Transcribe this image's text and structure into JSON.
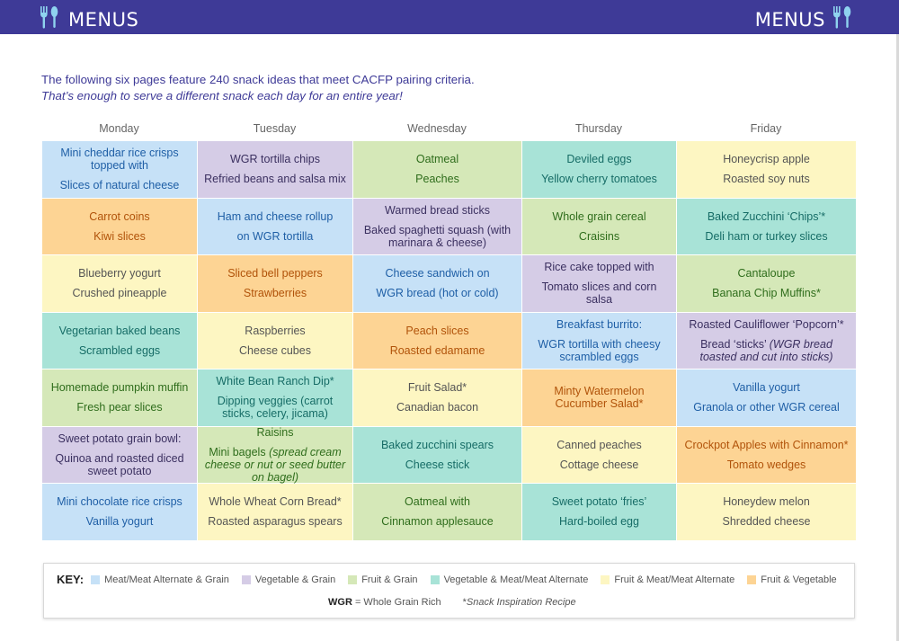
{
  "header": {
    "left_title": "MENUS",
    "right_title": "MENUS",
    "icon": "fork-spoon-icon"
  },
  "intro": {
    "line1": "The following six pages feature 240 snack ideas that meet CACFP pairing criteria.",
    "line2": "That’s enough to serve a different snack each day for an entire year!"
  },
  "days": [
    "Monday",
    "Tuesday",
    "Wednesday",
    "Thursday",
    "Friday"
  ],
  "colors": {
    "mg": "#c6e1f7",
    "vg": "#d5cce6",
    "fg": "#d5e8b8",
    "vm": "#a8e3d7",
    "fm": "#fdf6c2",
    "fv": "#fdd494",
    "header": "#3e3a97"
  },
  "grid": [
    [
      {
        "cat": "mg",
        "a": "Mini cheddar rice crisps topped with",
        "b": "Slices of natural cheese"
      },
      {
        "cat": "vg",
        "a": "WGR tortilla chips",
        "b": "Refried beans and salsa mix"
      },
      {
        "cat": "fg",
        "a": "Oatmeal",
        "b": "Peaches"
      },
      {
        "cat": "vm",
        "a": "Deviled eggs",
        "b": "Yellow cherry tomatoes"
      },
      {
        "cat": "fm",
        "a": "Honeycrisp apple",
        "b": "Roasted soy nuts"
      }
    ],
    [
      {
        "cat": "fv",
        "a": "Carrot coins",
        "b": "Kiwi slices"
      },
      {
        "cat": "mg",
        "a": "Ham and cheese rollup",
        "b": "on WGR tortilla"
      },
      {
        "cat": "vg",
        "a": "Warmed bread sticks",
        "b": "Baked spaghetti squash (with marinara & cheese)"
      },
      {
        "cat": "fg",
        "a": "Whole grain cereal",
        "b": "Craisins"
      },
      {
        "cat": "vm",
        "a": "Baked Zucchini ‘Chips’*",
        "b": "Deli ham or turkey slices"
      }
    ],
    [
      {
        "cat": "fm",
        "a": "Blueberry yogurt",
        "b": "Crushed pineapple"
      },
      {
        "cat": "fv",
        "a": "Sliced bell peppers",
        "b": "Strawberries"
      },
      {
        "cat": "mg",
        "a": "Cheese sandwich on",
        "b": "WGR bread (hot or cold)"
      },
      {
        "cat": "vg",
        "a": "Rice cake topped with",
        "b": "Tomato slices and corn salsa"
      },
      {
        "cat": "fg",
        "a": "Cantaloupe",
        "b": "Banana Chip Muffins*"
      }
    ],
    [
      {
        "cat": "vm",
        "a": "Vegetarian baked beans",
        "b": "Scrambled eggs"
      },
      {
        "cat": "fm",
        "a": "Raspberries",
        "b": "Cheese cubes"
      },
      {
        "cat": "fv",
        "a": "Peach slices",
        "b": "Roasted edamame"
      },
      {
        "cat": "mg",
        "a": "Breakfast burrito:",
        "b": "WGR tortilla with cheesy scrambled eggs"
      },
      {
        "cat": "vg",
        "a": "Roasted Cauliflower ‘Popcorn’*",
        "b": "Bread ‘sticks’",
        "bi": "(WGR bread toasted and cut into sticks)"
      }
    ],
    [
      {
        "cat": "fg",
        "a": "Homemade pumpkin muffin",
        "b": "Fresh pear slices"
      },
      {
        "cat": "vm",
        "a": "White Bean Ranch Dip*",
        "b": "Dipping veggies (carrot sticks, celery, jicama)"
      },
      {
        "cat": "fm",
        "a": "Fruit Salad*",
        "b": "Canadian bacon"
      },
      {
        "cat": "fv",
        "a": "Minty Watermelon Cucumber Salad*",
        "b": ""
      },
      {
        "cat": "mg",
        "a": "Vanilla yogurt",
        "b": "Granola or other WGR cereal"
      }
    ],
    [
      {
        "cat": "vg",
        "a": "Sweet potato grain bowl:",
        "b": "Quinoa and roasted diced sweet potato"
      },
      {
        "cat": "fg",
        "a": "Raisins",
        "b": "Mini bagels",
        "bi": "(spread cream cheese or nut or seed butter on bagel)"
      },
      {
        "cat": "vm",
        "a": "Baked zucchini spears",
        "b": "Cheese stick"
      },
      {
        "cat": "fm",
        "a": "Canned peaches",
        "b": "Cottage cheese"
      },
      {
        "cat": "fv",
        "a": "Crockpot Apples with Cinnamon*",
        "b": "Tomato wedges"
      }
    ],
    [
      {
        "cat": "mg",
        "a": "Mini chocolate rice crisps",
        "b": "Vanilla yogurt"
      },
      {
        "cat": "fm",
        "a": "Whole Wheat Corn Bread*",
        "b": "Roasted asparagus spears"
      },
      {
        "cat": "fg",
        "a": "Oatmeal with",
        "b": "Cinnamon applesauce"
      },
      {
        "cat": "vm",
        "a": "Sweet potato ‘fries’",
        "b": "Hard-boiled egg"
      },
      {
        "cat": "fm",
        "a": "Honeydew melon",
        "b": "Shredded cheese"
      }
    ]
  ],
  "key": {
    "label": "KEY:",
    "items": [
      {
        "cat": "mg",
        "label": "Meat/Meat Alternate & Grain"
      },
      {
        "cat": "vg",
        "label": "Vegetable & Grain"
      },
      {
        "cat": "fg",
        "label": "Fruit & Grain"
      },
      {
        "cat": "vm",
        "label": "Vegetable & Meat/Meat Alternate"
      },
      {
        "cat": "fm",
        "label": "Fruit & Meat/Meat Alternate"
      },
      {
        "cat": "fv",
        "label": "Fruit & Vegetable"
      }
    ],
    "wgr_abbr": "WGR",
    "wgr_def": "= Whole Grain Rich",
    "star": "*",
    "star_def": "Snack Inspiration Recipe"
  }
}
